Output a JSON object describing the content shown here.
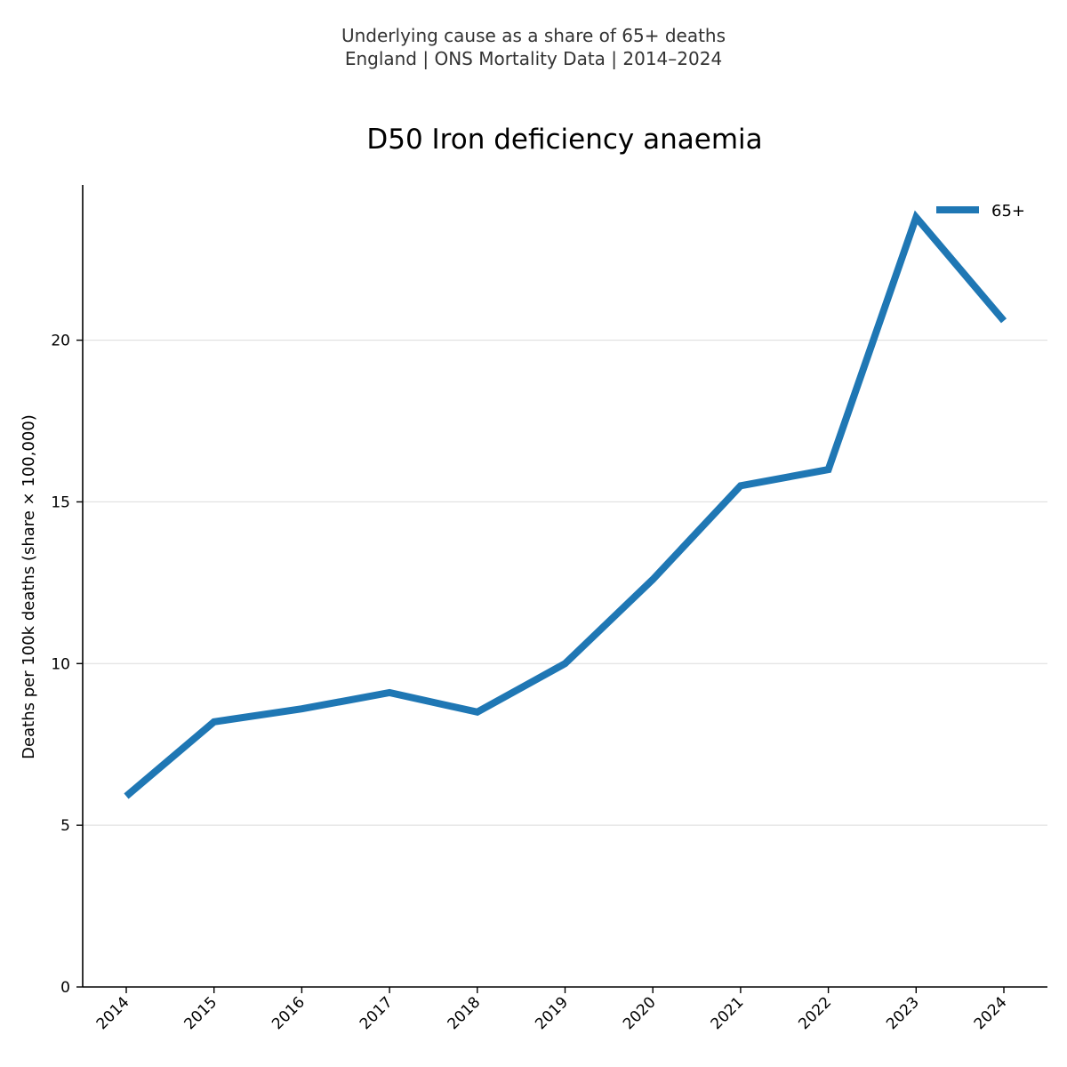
{
  "header": {
    "suptitle_line1": "Underlying cause as a share of 65+ deaths",
    "suptitle_line2": "England | ONS Mortality Data | 2014–2024"
  },
  "chart_data": {
    "type": "line",
    "title": "D50 Iron deficiency anaemia",
    "xlabel": "",
    "ylabel": "Deaths per 100k deaths (share × 100,000)",
    "categories": [
      "2014",
      "2015",
      "2016",
      "2017",
      "2018",
      "2019",
      "2020",
      "2021",
      "2022",
      "2023",
      "2024"
    ],
    "series": [
      {
        "name": "65+",
        "color": "#1f77b4",
        "values": [
          5.9,
          8.2,
          8.6,
          9.1,
          8.5,
          10.0,
          12.6,
          15.5,
          16.0,
          23.8,
          20.6
        ]
      }
    ],
    "ylim": [
      0,
      24.8
    ],
    "yticks": [
      0,
      5,
      10,
      15,
      20
    ],
    "grid": "y",
    "legend_position": "top-right",
    "colors": {
      "axis": "#000000",
      "grid": "#e0e0e0"
    }
  }
}
